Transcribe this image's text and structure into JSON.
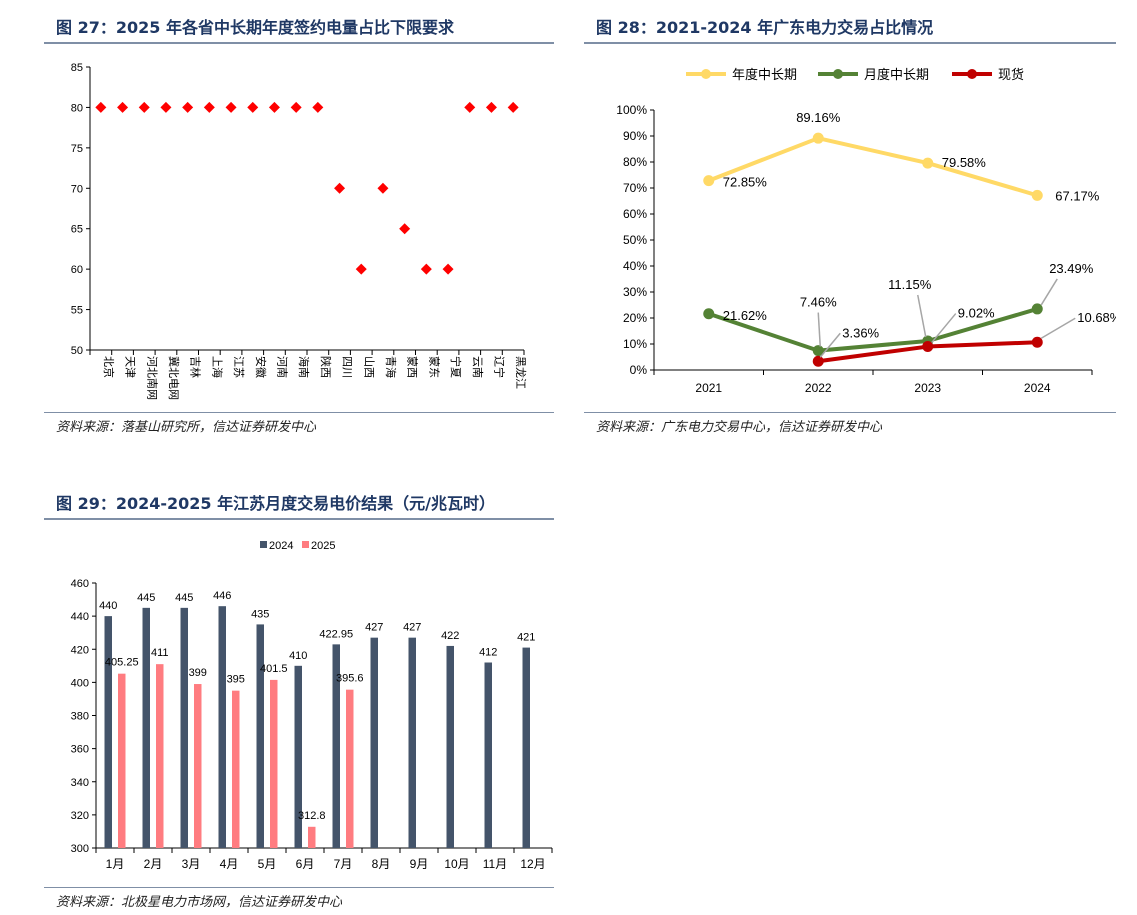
{
  "figures": [
    {
      "title": "图 27：2025 年各省中长期年度签约电量占比下限要求",
      "source": "资料来源：落基山研究所，信达证券研发中心"
    },
    {
      "title": "图 28：2021-2024 年广东电力交易占比情况",
      "source": "资料来源：广东电力交易中心，信达证券研发中心"
    },
    {
      "title": "图 29：2024-2025 年江苏月度交易电价结果（元/兆瓦时）",
      "source": "资料来源：北极星电力市场网，信达证券研发中心"
    }
  ],
  "colors": {
    "title": "#1f3864",
    "diamond": "#ff0000",
    "yearly": "#ffd966",
    "monthly": "#548235",
    "spot": "#c00000",
    "bar2024": "#44546a",
    "bar2025": "#ff7c80",
    "axis": "#000000"
  },
  "chart_data": [
    {
      "type": "scatter",
      "marker": "diamond",
      "categories": [
        "北京",
        "天津",
        "河北南网",
        "冀北电网",
        "吉林",
        "上海",
        "江苏",
        "安徽",
        "河南",
        "海南",
        "陕西",
        "四川",
        "山西",
        "青海",
        "蒙西",
        "蒙东",
        "宁夏",
        "云南",
        "辽宁",
        "黑龙江"
      ],
      "values": [
        80,
        80,
        80,
        80,
        80,
        80,
        80,
        80,
        80,
        80,
        80,
        70,
        60,
        70,
        65,
        60,
        60,
        80,
        80,
        80
      ],
      "ylim": [
        50,
        85
      ],
      "yticks": [
        50,
        55,
        60,
        65,
        70,
        75,
        80,
        85
      ],
      "title": "",
      "xlabel": "",
      "ylabel": ""
    },
    {
      "type": "line",
      "x": [
        "2021",
        "2022",
        "2023",
        "2024"
      ],
      "series": [
        {
          "name": "年度中长期",
          "values": [
            72.85,
            89.16,
            79.58,
            67.17
          ],
          "labels": [
            "72.85%",
            "89.16%",
            "79.58%",
            "67.17%"
          ]
        },
        {
          "name": "月度中长期",
          "values": [
            21.62,
            7.46,
            11.15,
            23.49
          ],
          "labels": [
            "21.62%",
            "7.46%",
            "11.15%",
            "23.49%"
          ]
        },
        {
          "name": "现货",
          "values": [
            null,
            3.36,
            9.02,
            10.68
          ],
          "labels": [
            "",
            "3.36%",
            "9.02%",
            "10.68%"
          ]
        }
      ],
      "ylim": [
        0,
        100
      ],
      "yticks": [
        "0%",
        "10%",
        "20%",
        "30%",
        "40%",
        "50%",
        "60%",
        "70%",
        "80%",
        "90%",
        "100%"
      ],
      "legend": "top",
      "title": "",
      "xlabel": "",
      "ylabel": ""
    },
    {
      "type": "bar",
      "categories": [
        "1月",
        "2月",
        "3月",
        "4月",
        "5月",
        "6月",
        "7月",
        "8月",
        "9月",
        "10月",
        "11月",
        "12月"
      ],
      "series": [
        {
          "name": "2024",
          "values": [
            440,
            445,
            445,
            446,
            435,
            410,
            422.95,
            427,
            427,
            422,
            412,
            421
          ],
          "labels": [
            "440",
            "445",
            "445",
            "446",
            "435",
            "410",
            "422.95",
            "427",
            "427",
            "422",
            "412",
            "421"
          ]
        },
        {
          "name": "2025",
          "values": [
            405.25,
            411,
            399,
            395,
            401.5,
            312.8,
            395.6,
            null,
            null,
            null,
            null,
            null
          ],
          "labels": [
            "405.25",
            "411",
            "399",
            "395",
            "401.5",
            "312.8",
            "395.6",
            "",
            "",
            "",
            "",
            ""
          ]
        }
      ],
      "ylim": [
        300,
        460
      ],
      "yticks": [
        300,
        320,
        340,
        360,
        380,
        400,
        420,
        440,
        460
      ],
      "legend": "top",
      "title": "",
      "xlabel": "",
      "ylabel": ""
    }
  ]
}
